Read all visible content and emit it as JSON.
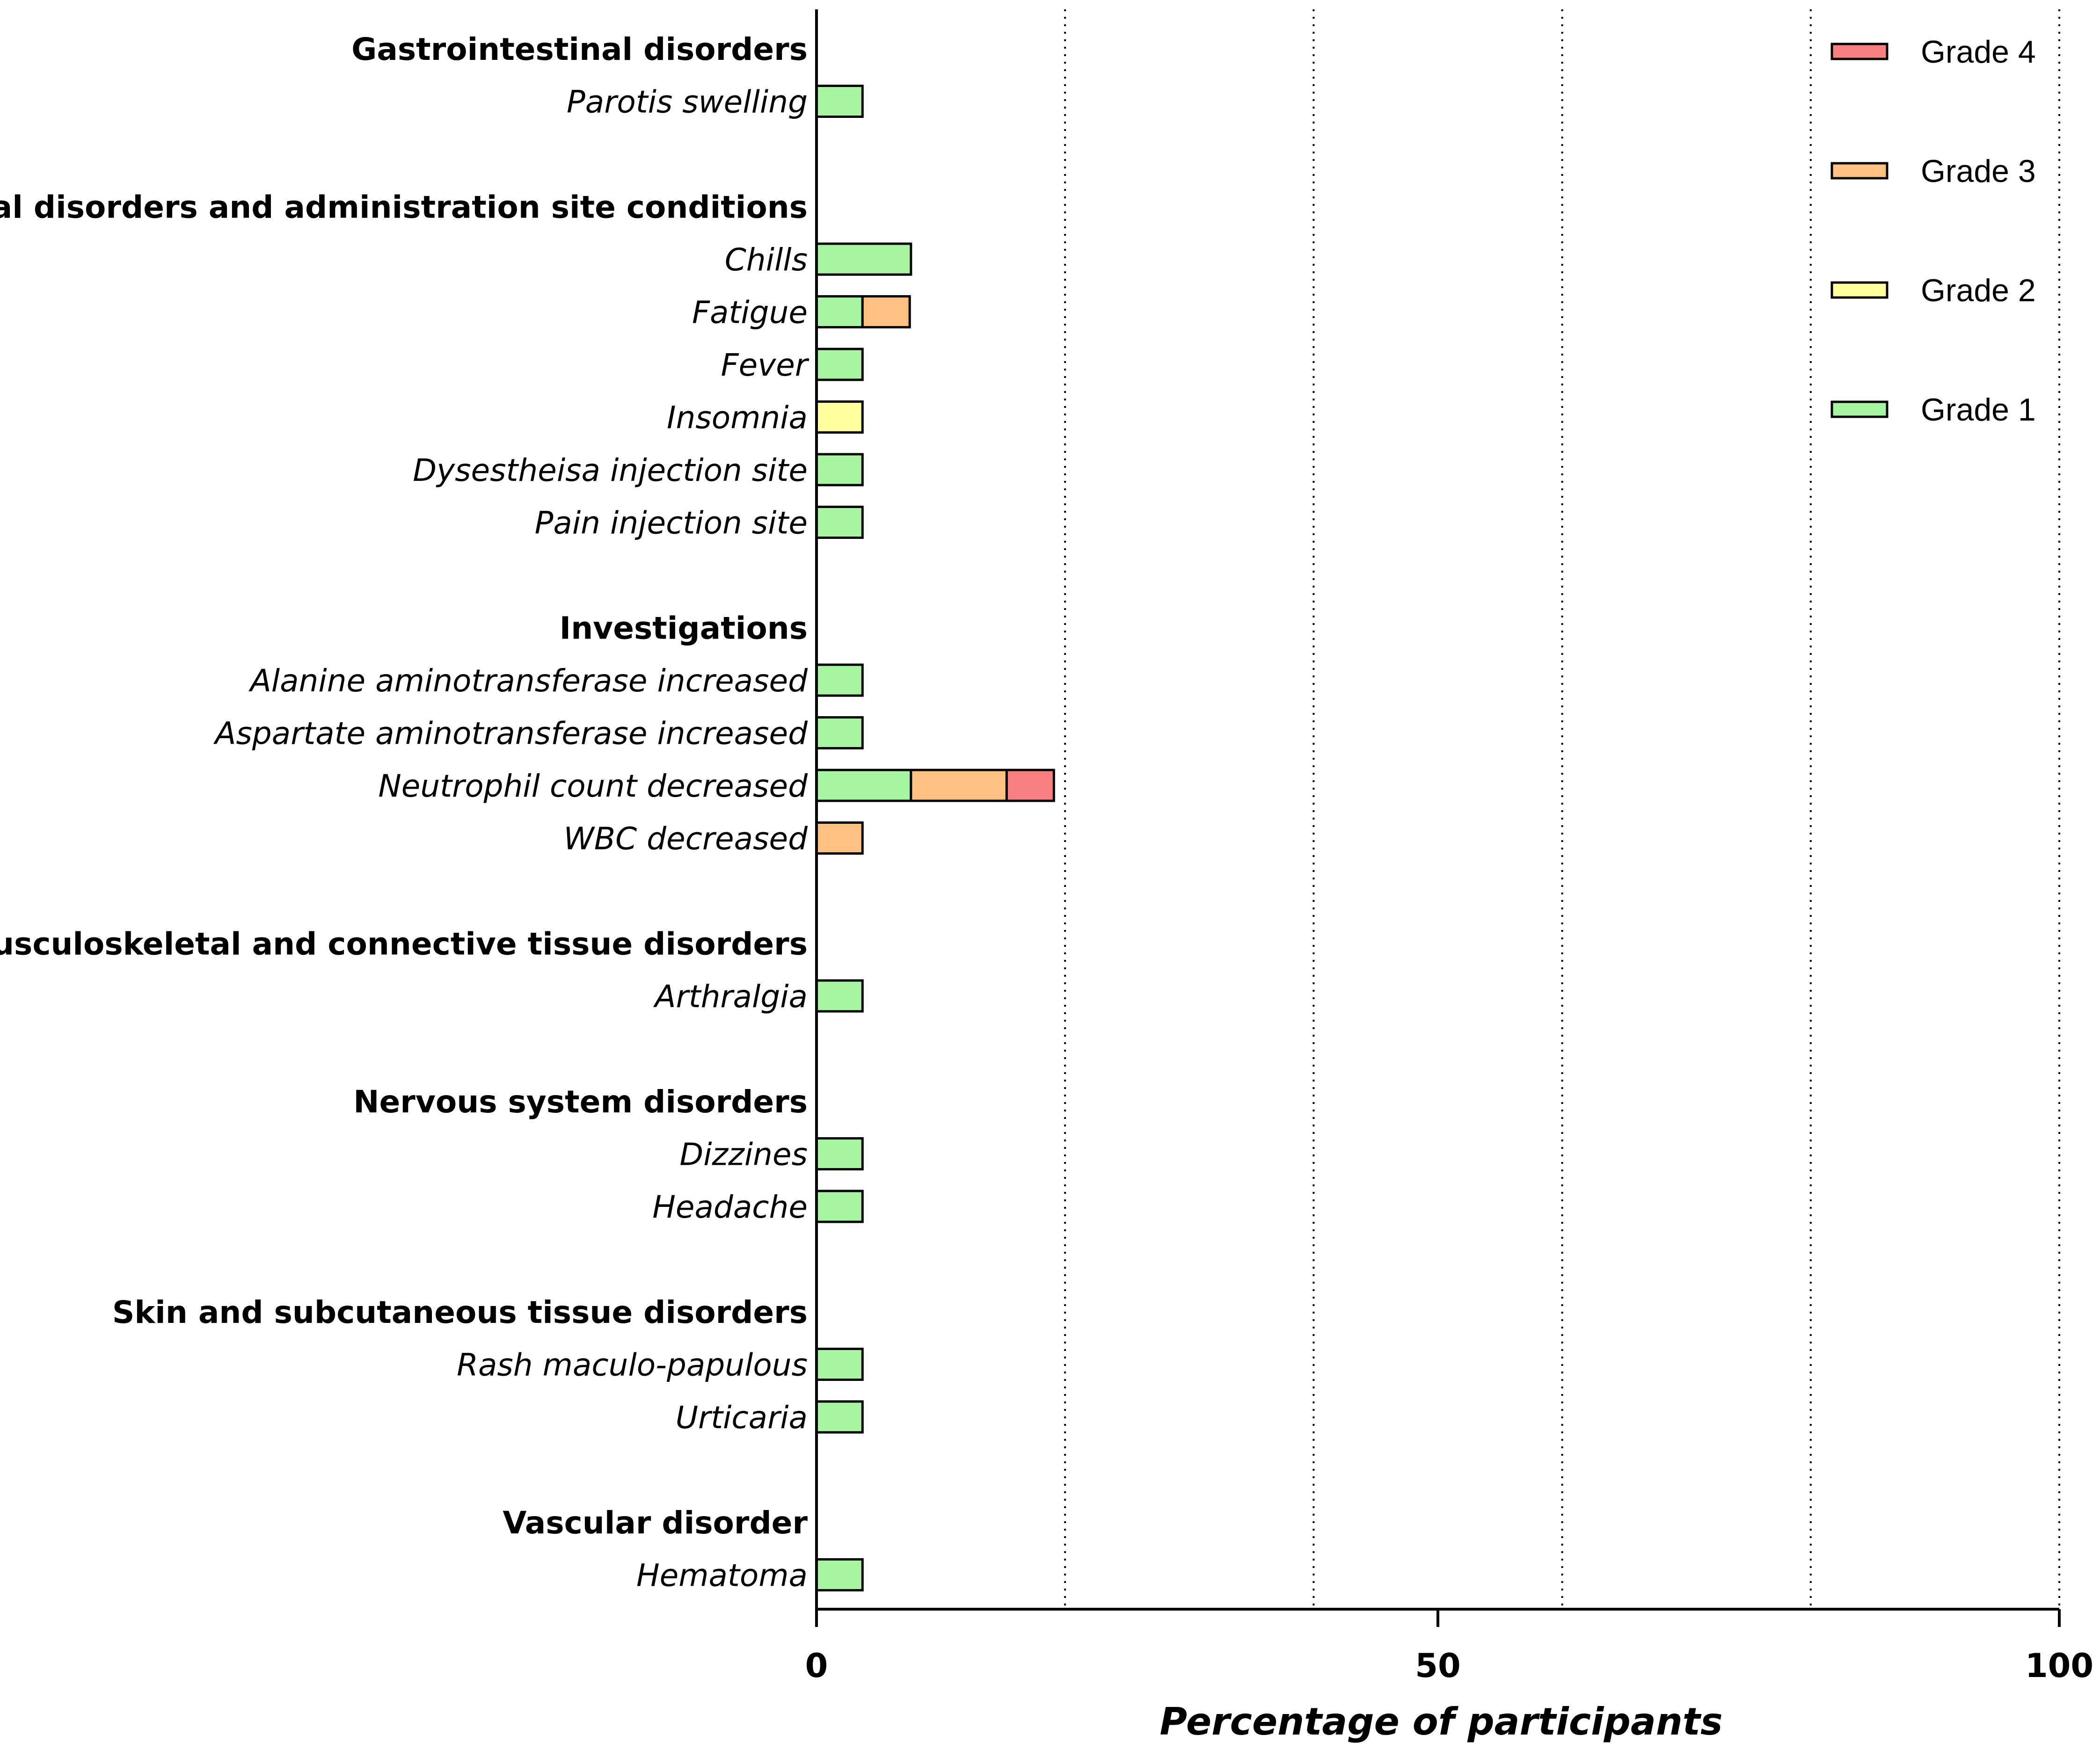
{
  "chart_data": {
    "type": "bar",
    "orientation": "horizontal",
    "stacked": true,
    "title": "",
    "xlabel": "Percentage of participants",
    "ylabel": "",
    "xlim": [
      0,
      100
    ],
    "xticks": [
      0,
      50,
      100
    ],
    "grid_lines_x": [
      20,
      40,
      60,
      80
    ],
    "legend_position": "top-right",
    "series": [
      {
        "name": "Grade 1",
        "color": "#A6F5A0"
      },
      {
        "name": "Grade 2",
        "color": "#FFFFA0"
      },
      {
        "name": "Grade 3",
        "color": "#FFC080"
      },
      {
        "name": "Grade 4",
        "color": "#F88080"
      }
    ],
    "legend_order": [
      "Grade 4",
      "Grade 3",
      "Grade 2",
      "Grade 1"
    ],
    "groups": [
      {
        "category": "Gastrointestinal disorders",
        "items": [
          {
            "label": "Parotis swelling",
            "values": [
              3.7,
              0,
              0,
              0
            ]
          }
        ]
      },
      {
        "category": "General disorders and administration site conditions",
        "items": [
          {
            "label": "Chills",
            "values": [
              7.6,
              0,
              0,
              0
            ]
          },
          {
            "label": "Fatigue",
            "values": [
              3.7,
              0,
              3.8,
              0
            ]
          },
          {
            "label": "Fever",
            "values": [
              3.7,
              0,
              0,
              0
            ]
          },
          {
            "label": "Insomnia",
            "values": [
              0,
              3.7,
              0,
              0
            ]
          },
          {
            "label": "Dysestheisa injection site",
            "values": [
              3.7,
              0,
              0,
              0
            ]
          },
          {
            "label": "Pain injection site",
            "values": [
              3.7,
              0,
              0,
              0
            ]
          }
        ]
      },
      {
        "category": "Investigations",
        "items": [
          {
            "label": "Alanine aminotransferase increased",
            "values": [
              3.7,
              0,
              0,
              0
            ]
          },
          {
            "label": "Aspartate aminotransferase increased",
            "values": [
              3.7,
              0,
              0,
              0
            ]
          },
          {
            "label": "Neutrophil count decreased",
            "values": [
              7.6,
              0,
              7.7,
              3.8
            ]
          },
          {
            "label": "WBC decreased",
            "values": [
              0,
              0,
              3.7,
              0
            ]
          }
        ]
      },
      {
        "category": "Musculoskeletal and connective tissue disorders",
        "items": [
          {
            "label": "Arthralgia",
            "values": [
              3.7,
              0,
              0,
              0
            ]
          }
        ]
      },
      {
        "category": "Nervous system disorders",
        "items": [
          {
            "label": "Dizzines",
            "values": [
              3.7,
              0,
              0,
              0
            ]
          },
          {
            "label": "Headache",
            "values": [
              3.7,
              0,
              0,
              0
            ]
          }
        ]
      },
      {
        "category": "Skin and subcutaneous tissue disorders",
        "items": [
          {
            "label": "Rash maculo-papulous",
            "values": [
              3.7,
              0,
              0,
              0
            ]
          },
          {
            "label": "Urticaria",
            "values": [
              3.7,
              0,
              0,
              0
            ]
          }
        ]
      },
      {
        "category": "Vascular disorder",
        "items": [
          {
            "label": "Hematoma",
            "values": [
              3.7,
              0,
              0,
              0
            ]
          }
        ]
      }
    ]
  }
}
